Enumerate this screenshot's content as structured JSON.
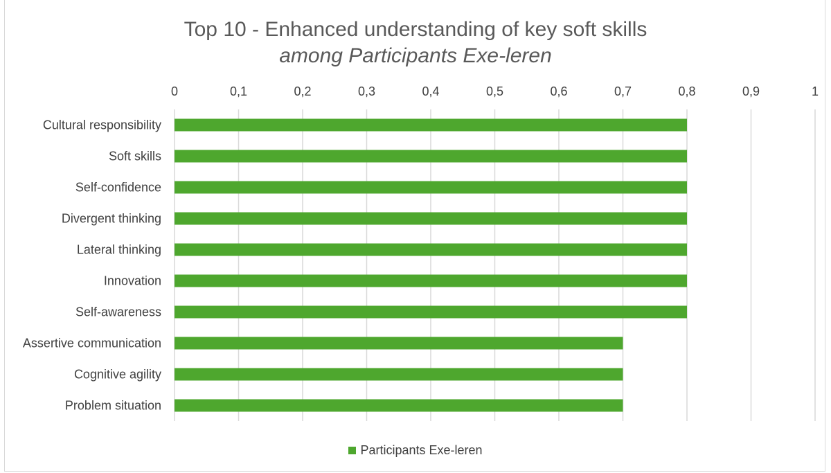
{
  "chart_data": {
    "type": "bar",
    "orientation": "horizontal",
    "title": "Top 10 - Enhanced understanding of key soft skills",
    "subtitle": "among Participants Exe-leren",
    "categories": [
      "Cultural responsibility",
      "Soft skills",
      "Self-confidence",
      "Divergent thinking",
      "Lateral thinking",
      "Innovation",
      "Self-awareness",
      "Assertive communication",
      "Cognitive agility",
      "Problem situation"
    ],
    "series": [
      {
        "name": "Participants Exe-leren",
        "values": [
          0.8,
          0.8,
          0.8,
          0.8,
          0.8,
          0.8,
          0.8,
          0.7,
          0.7,
          0.7
        ]
      }
    ],
    "xlim": [
      0,
      1
    ],
    "x_ticks": [
      "0",
      "0,1",
      "0,2",
      "0,3",
      "0,4",
      "0,5",
      "0,6",
      "0,7",
      "0,8",
      "0,9",
      "1"
    ],
    "axis_position": "top",
    "grid": true,
    "legend_position": "bottom",
    "colors": {
      "bar": "#4ea72e",
      "grid": "#d9d9d9"
    }
  }
}
